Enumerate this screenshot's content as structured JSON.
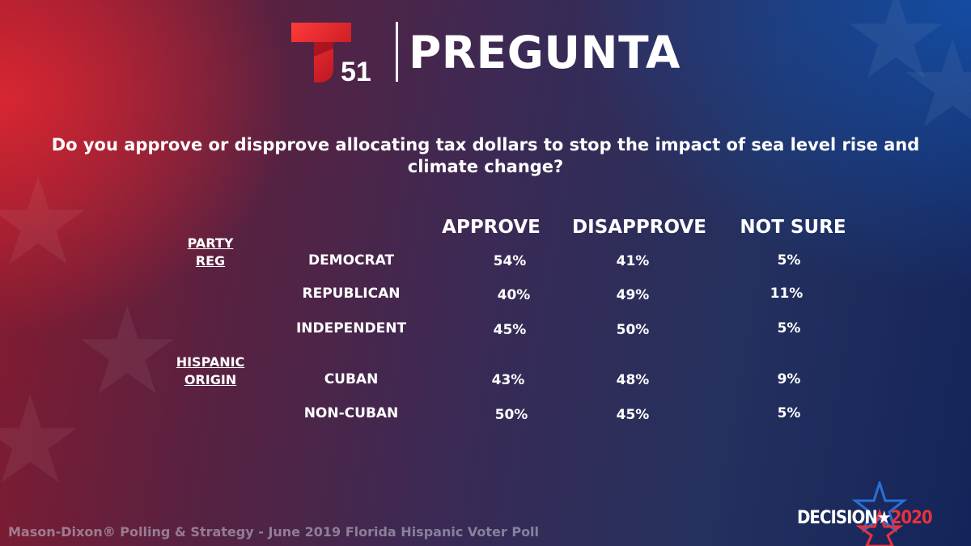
{
  "brand": {
    "channel_number": "51",
    "title": "PREGUNTA"
  },
  "question": "Do you approve or dispprove allocating tax dollars to stop the impact of sea level rise and climate change?",
  "table": {
    "columns": [
      "APPROVE",
      "DISAPPROVE",
      "NOT SURE"
    ],
    "groups": [
      {
        "label_line1": "PARTY",
        "label_line2": "REG"
      },
      {
        "label_line1": "HISPANIC",
        "label_line2": "ORIGIN"
      }
    ],
    "rows": [
      {
        "label": "DEMOCRAT",
        "approve": "54%",
        "disapprove": "41%",
        "not_sure": "5%"
      },
      {
        "label": "REPUBLICAN",
        "approve": "40%",
        "disapprove": "49%",
        "not_sure": "11%"
      },
      {
        "label": "INDEPENDENT",
        "approve": "45%",
        "disapprove": "50%",
        "not_sure": "5%"
      },
      {
        "label": "CUBAN",
        "approve": "43%",
        "disapprove": "48%",
        "not_sure": "9%"
      },
      {
        "label": "NON-CUBAN",
        "approve": "50%",
        "disapprove": "45%",
        "not_sure": "5%"
      }
    ]
  },
  "footer": "Mason-Dixon® Polling & Strategy - June 2019 Florida Hispanic Voter Poll",
  "badge": {
    "word": "DECISION",
    "star": "★",
    "year": "2020"
  },
  "colors": {
    "brand_red": "#e01b2a",
    "accent_blue": "#2a6fd6",
    "text": "#ffffff"
  }
}
